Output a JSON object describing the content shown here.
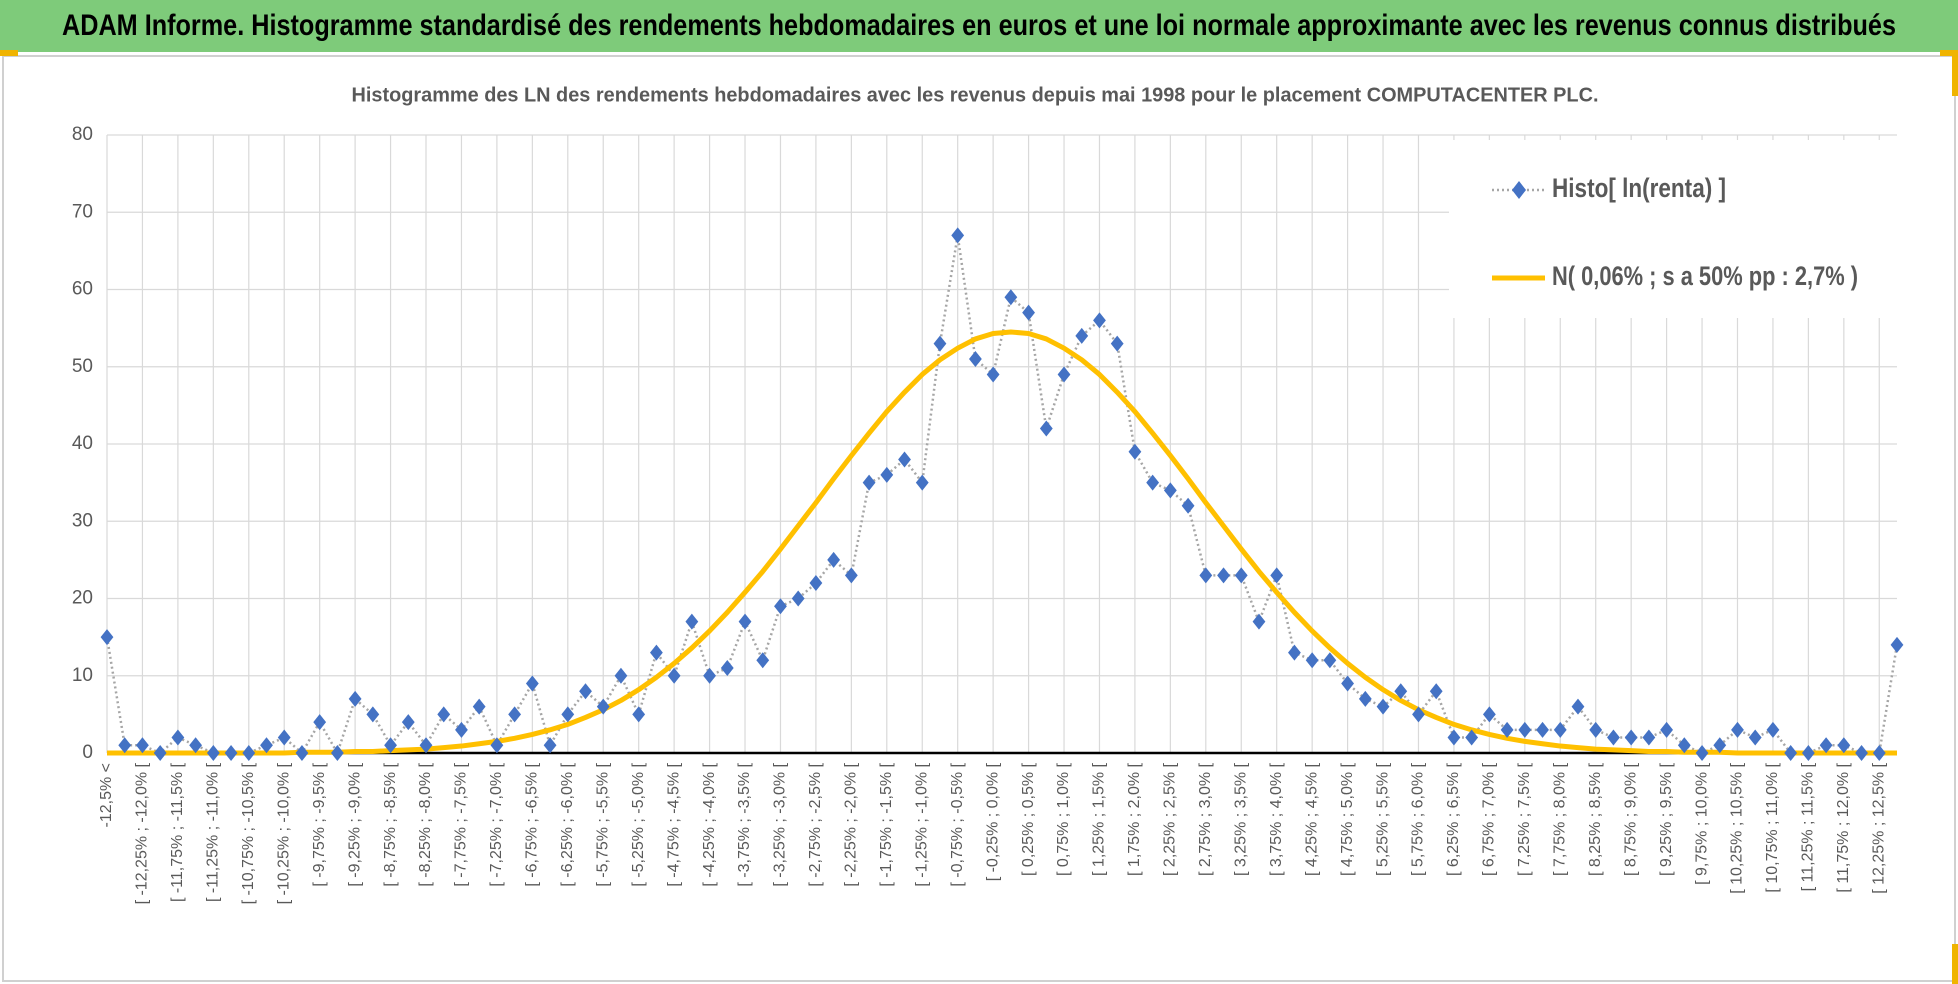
{
  "header": {
    "title": "ADAM Informe. Histogramme standardisé des rendements hebdomadaires en euros et une loi normale approximante avec les revenus connus distribués"
  },
  "chart_data": {
    "type": "line",
    "title": "Histogramme des LN des rendements hebdomadaires avec les revenus depuis mai 1998 pour le placement COMPUTACENTER PLC.",
    "categories": [
      "-12,5% <",
      null,
      "[ -12,25% ; -12,0% [",
      null,
      "[ -11,75% ; -11,5% [",
      null,
      "[ -11,25% ; -11,0% [",
      null,
      "[ -10,75% ; -10,5% [",
      null,
      "[ -10,25% ; -10,0% [",
      null,
      "[ -9,75% ; -9,5% [",
      null,
      "[ -9,25% ; -9,0% [",
      null,
      "[ -8,75% ; -8,5% [",
      null,
      "[ -8,25% ; -8,0% [",
      null,
      "[ -7,75% ; -7,5% [",
      null,
      "[ -7,25% ; -7,0% [",
      null,
      "[ -6,75% ; -6,5% [",
      null,
      "[ -6,25% ; -6,0% [",
      null,
      "[ -5,75% ; -5,5% [",
      null,
      "[ -5,25% ; -5,0% [",
      null,
      "[ -4,75% ; -4,5% [",
      null,
      "[ -4,25% ; -4,0% [",
      null,
      "[ -3,75% ; -3,5% [",
      null,
      "[ -3,25% ; -3,0% [",
      null,
      "[ -2,75% ; -2,5% [",
      null,
      "[ -2,25% ; -2,0% [",
      null,
      "[ -1,75% ; -1,5% [",
      null,
      "[ -1,25% ; -1,0% [",
      null,
      "[ -0,75% ; -0,5% [",
      null,
      "[ -0,25% ; 0,0% [",
      null,
      "[ 0,25% ; 0,5% [",
      null,
      "[ 0,75% ; 1,0% [",
      null,
      "[ 1,25% ; 1,5% [",
      null,
      "[ 1,75% ; 2,0% [",
      null,
      "[ 2,25% ; 2,5% [",
      null,
      "[ 2,75% ; 3,0% [",
      null,
      "[ 3,25% ; 3,5% [",
      null,
      "[ 3,75% ; 4,0% [",
      null,
      "[ 4,25% ; 4,5% [",
      null,
      "[ 4,75% ; 5,0% [",
      null,
      "[ 5,25% ; 5,5% [",
      null,
      "[ 5,75% ; 6,0% [",
      null,
      "[ 6,25% ; 6,5% [",
      null,
      "[ 6,75% ; 7,0% [",
      null,
      "[ 7,25% ; 7,5% [",
      null,
      "[ 7,75% ; 8,0% [",
      null,
      "[ 8,25% ; 8,5% [",
      null,
      "[ 8,75% ; 9,0% [",
      null,
      "[ 9,25% ; 9,5% [",
      null,
      "[ 9,75% ; 10,0% [",
      null,
      "[ 10,25% ; 10,5% [",
      null,
      "[ 10,75% ; 11,0% [",
      null,
      "[ 11,25% ; 11,5% [",
      null,
      "[ 11,75% ; 12,0% [",
      null,
      "[ 12,25% ; 12,5% [",
      null
    ],
    "series": [
      {
        "name": "Histo[ ln(renta) ]",
        "color": "#4472c4",
        "line_color": "#a6a6a6",
        "values": [
          15,
          1,
          1,
          0,
          2,
          1,
          0,
          0,
          0,
          1,
          2,
          0,
          4,
          0,
          7,
          5,
          1,
          4,
          1,
          5,
          3,
          6,
          1,
          5,
          9,
          1,
          5,
          8,
          6,
          10,
          5,
          13,
          10,
          17,
          10,
          11,
          17,
          12,
          19,
          20,
          22,
          25,
          23,
          35,
          36,
          38,
          35,
          53,
          67,
          51,
          49,
          59,
          57,
          42,
          49,
          54,
          56,
          53,
          39,
          35,
          34,
          32,
          23,
          23,
          23,
          17,
          23,
          13,
          12,
          12,
          9,
          7,
          6,
          8,
          5,
          8,
          2,
          2,
          5,
          3,
          3,
          3,
          3,
          6,
          3,
          2,
          2,
          2,
          3,
          1,
          0,
          1,
          3,
          2,
          3,
          0,
          0,
          1,
          1,
          0,
          0,
          14
        ]
      },
      {
        "name": "N( 0,06% ; s a 50% pp : 2,7% )",
        "color": "#ffc000",
        "values": [
          0,
          0,
          0,
          0,
          0,
          0,
          0,
          0,
          0,
          0,
          0,
          0.1,
          0.1,
          0.1,
          0.2,
          0.2,
          0.3,
          0.4,
          0.5,
          0.7,
          0.9,
          1.2,
          1.5,
          1.9,
          2.4,
          3.0,
          3.7,
          4.6,
          5.6,
          6.8,
          8.2,
          9.8,
          11.6,
          13.6,
          15.8,
          18.2,
          20.8,
          23.5,
          26.4,
          29.4,
          32.4,
          35.5,
          38.5,
          41.4,
          44.2,
          46.7,
          49.0,
          50.9,
          52.4,
          53.6,
          54.3,
          54.5,
          54.3,
          53.6,
          52.4,
          50.9,
          49.0,
          46.7,
          44.2,
          41.4,
          38.5,
          35.5,
          32.4,
          29.4,
          26.4,
          23.5,
          20.8,
          18.2,
          15.8,
          13.6,
          11.6,
          9.8,
          8.2,
          6.8,
          5.6,
          4.6,
          3.7,
          3.0,
          2.4,
          1.9,
          1.5,
          1.2,
          0.9,
          0.7,
          0.5,
          0.4,
          0.3,
          0.2,
          0.2,
          0.1,
          0.1,
          0.1,
          0,
          0,
          0,
          0,
          0,
          0,
          0,
          0,
          0,
          0
        ]
      }
    ],
    "ylim": [
      0,
      80
    ],
    "yticks": [
      0,
      10,
      20,
      30,
      40,
      50,
      60,
      70,
      80
    ],
    "grid": true,
    "legend": "upper right"
  }
}
